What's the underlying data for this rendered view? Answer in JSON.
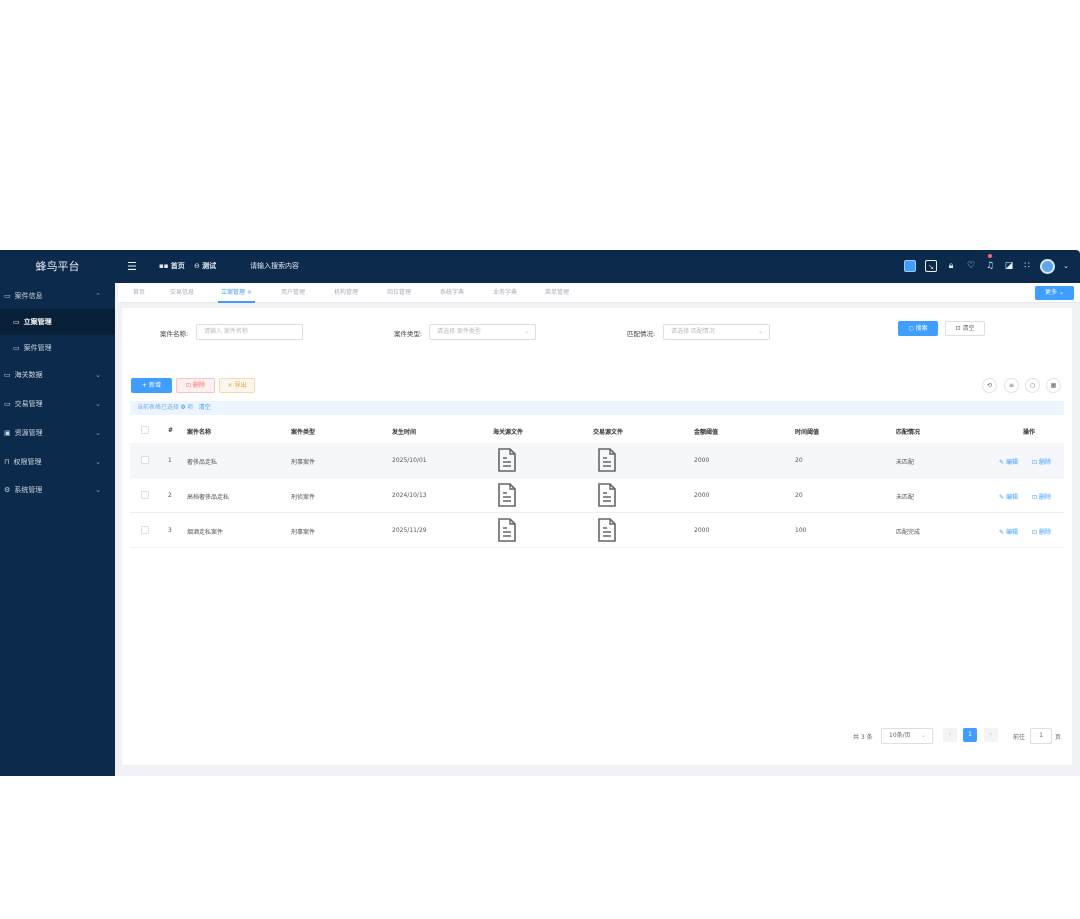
{
  "app": {
    "title": "蜂鸟平台"
  },
  "header": {
    "nav": [
      {
        "label": "首页",
        "icon": "grid-icon"
      },
      {
        "label": "测试",
        "icon": "circle-icon"
      }
    ],
    "search_placeholder": "请输入搜索内容",
    "icons": [
      "screen-icon",
      "fullscreen-icon",
      "lock-icon",
      "theme-icon",
      "bell-icon",
      "translate-icon",
      "layout-icon",
      "avatar",
      "chevron-down-icon"
    ],
    "badge_color": "#f56c6c"
  },
  "sidebar": {
    "items": [
      {
        "label": "案件信息",
        "icon": "monitor-icon",
        "expanded": true
      },
      {
        "label": "立案管理",
        "icon": "monitor-icon",
        "sub": true,
        "active": true
      },
      {
        "label": "案件管理",
        "icon": "monitor-icon",
        "sub": true
      },
      {
        "label": "海关数据",
        "icon": "monitor-icon"
      },
      {
        "label": "交易管理",
        "icon": "monitor-icon"
      },
      {
        "label": "资源管理",
        "icon": "folder-icon"
      },
      {
        "label": "权限管理",
        "icon": "lock-icon"
      },
      {
        "label": "系统管理",
        "icon": "gear-icon"
      }
    ]
  },
  "tabs": {
    "items": [
      "首页",
      "交易信息",
      "立案管理",
      "用户管理",
      "机构管理",
      "岗位管理",
      "系统字典",
      "业务字典",
      "菜单管理"
    ],
    "active": 2,
    "more": "更多"
  },
  "search": {
    "name_label": "案件名称:",
    "name_placeholder": "请输入 案件名称",
    "type_label": "案件类型:",
    "type_placeholder": "请选择 案件类型",
    "match_label": "匹配情况:",
    "match_placeholder": "请选择 匹配情况",
    "search_btn": "搜索",
    "clear_btn": "清空"
  },
  "toolbar": {
    "add": "新增",
    "delete": "删除",
    "export": "导出"
  },
  "selection": {
    "text": "当前表格已选择",
    "count": "0",
    "unit": "项",
    "clear": "清空"
  },
  "table": {
    "columns": [
      "#",
      "案件名称",
      "案件类型",
      "发生时间",
      "海关源文件",
      "交易源文件",
      "金额阈值",
      "时间阈值",
      "匹配情况",
      "操作"
    ],
    "rows": [
      {
        "no": "1",
        "name": "奢侈品走私",
        "type": "刑事案件",
        "time": "2025/10/01",
        "amount": "2000",
        "timeval": "20",
        "match": "未匹配"
      },
      {
        "no": "2",
        "name": "高档奢侈品走私",
        "type": "刑侦案件",
        "time": "2024/10/13",
        "amount": "2000",
        "timeval": "20",
        "match": "未匹配"
      },
      {
        "no": "3",
        "name": "烟酒走私案件",
        "type": "刑事案件",
        "time": "2025/11/29",
        "amount": "2000",
        "timeval": "100",
        "match": "匹配完成"
      }
    ],
    "edit": "编辑",
    "delete": "删除"
  },
  "pagination": {
    "total": "共 3 条",
    "page_size": "10条/页",
    "current": "1",
    "goto": "前往",
    "goto_value": "1",
    "page_unit": "页"
  },
  "colors": {
    "primary": "#409eff",
    "sidebar": "#0c2a4b"
  }
}
